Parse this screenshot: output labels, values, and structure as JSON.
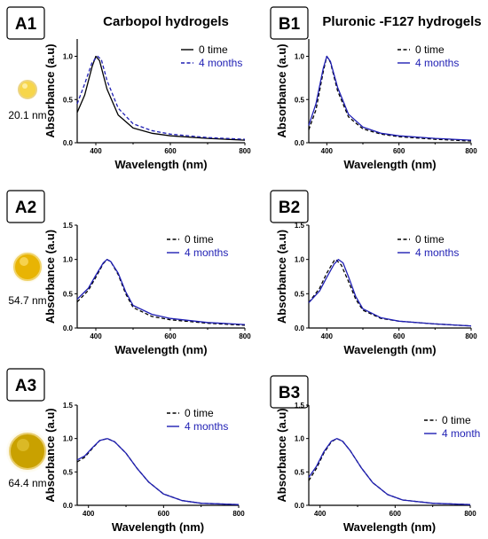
{
  "column_titles": [
    "Carbopol hydrogels",
    "Pluronic -F127 hydrogels"
  ],
  "nanoparticles": [
    {
      "label": "20.1 nm",
      "fill": "#f7d64a"
    },
    {
      "label": "54.7 nm",
      "fill": "#e8b404"
    },
    {
      "label": "64.4 nm",
      "fill": "#c9a100"
    }
  ],
  "colors": {
    "series_0": "#000000",
    "series_1": "#1f1fb4",
    "legend_text_1": "#1f1fb4"
  },
  "chart_data": [
    {
      "id": "A1",
      "type": "line",
      "panel_label": "A1",
      "xlabel": "Wavelength (nm)",
      "ylabel": "Absorbance (a.u)",
      "xlim": [
        350,
        800
      ],
      "ylim": [
        0,
        1.2
      ],
      "xticks": [
        400,
        600,
        800
      ],
      "yticks": [
        0.0,
        0.5,
        1.0
      ],
      "legend_position": "top-right",
      "series": [
        {
          "name": "0 time",
          "style": "solid",
          "x": [
            350,
            370,
            390,
            400,
            410,
            430,
            460,
            500,
            550,
            600,
            700,
            800
          ],
          "y": [
            0.35,
            0.55,
            0.88,
            1.0,
            0.95,
            0.62,
            0.32,
            0.17,
            0.11,
            0.08,
            0.05,
            0.03
          ]
        },
        {
          "name": "4 months",
          "style": "dashed",
          "x": [
            350,
            370,
            390,
            405,
            415,
            430,
            460,
            500,
            550,
            600,
            700,
            800
          ],
          "y": [
            0.45,
            0.68,
            0.93,
            1.0,
            0.96,
            0.72,
            0.4,
            0.22,
            0.14,
            0.1,
            0.06,
            0.04
          ]
        }
      ]
    },
    {
      "id": "B1",
      "type": "line",
      "panel_label": "B1",
      "xlabel": "Wavelength (nm)",
      "ylabel": "Absorbance (a.u)",
      "xlim": [
        350,
        800
      ],
      "ylim": [
        0,
        1.2
      ],
      "xticks": [
        400,
        600,
        800
      ],
      "yticks": [
        0.0,
        0.5,
        1.0
      ],
      "legend_position": "top-right",
      "series": [
        {
          "name": "0 time",
          "style": "dashed",
          "x": [
            350,
            370,
            390,
            400,
            410,
            430,
            460,
            500,
            550,
            600,
            700,
            800
          ],
          "y": [
            0.15,
            0.38,
            0.82,
            1.0,
            0.93,
            0.6,
            0.3,
            0.16,
            0.1,
            0.07,
            0.04,
            0.02
          ]
        },
        {
          "name": "4 months",
          "style": "solid",
          "x": [
            350,
            370,
            390,
            400,
            410,
            430,
            460,
            500,
            550,
            600,
            700,
            800
          ],
          "y": [
            0.2,
            0.45,
            0.86,
            1.0,
            0.94,
            0.64,
            0.33,
            0.18,
            0.11,
            0.08,
            0.05,
            0.03
          ]
        }
      ]
    },
    {
      "id": "A2",
      "type": "line",
      "panel_label": "A2",
      "xlabel": "Wavelength (nm)",
      "ylabel": "Absorbance (a.u)",
      "xlim": [
        350,
        800
      ],
      "ylim": [
        0,
        1.5
      ],
      "xticks": [
        400,
        600,
        800
      ],
      "yticks": [
        0.0,
        0.5,
        1.0,
        1.5
      ],
      "legend_position": "top-right",
      "series": [
        {
          "name": "0 time",
          "style": "dashed",
          "x": [
            350,
            380,
            400,
            420,
            430,
            440,
            460,
            480,
            500,
            550,
            600,
            700,
            800
          ],
          "y": [
            0.38,
            0.55,
            0.74,
            0.94,
            1.0,
            0.97,
            0.78,
            0.5,
            0.3,
            0.17,
            0.12,
            0.07,
            0.04
          ]
        },
        {
          "name": "4 months",
          "style": "solid",
          "x": [
            350,
            380,
            400,
            420,
            430,
            440,
            460,
            480,
            500,
            550,
            600,
            700,
            800
          ],
          "y": [
            0.42,
            0.58,
            0.77,
            0.95,
            1.0,
            0.97,
            0.8,
            0.53,
            0.33,
            0.2,
            0.14,
            0.08,
            0.05
          ]
        }
      ]
    },
    {
      "id": "B2",
      "type": "line",
      "panel_label": "B2",
      "xlabel": "Wavelength (nm)",
      "ylabel": "Absorbance (a.u)",
      "xlim": [
        350,
        800
      ],
      "ylim": [
        0,
        1.5
      ],
      "xticks": [
        400,
        600,
        800
      ],
      "yticks": [
        0.0,
        0.5,
        1.0,
        1.5
      ],
      "legend_position": "top-right",
      "series": [
        {
          "name": "0 time",
          "style": "dashed",
          "x": [
            350,
            380,
            400,
            420,
            425,
            440,
            460,
            480,
            500,
            550,
            600,
            700,
            800
          ],
          "y": [
            0.37,
            0.58,
            0.8,
            0.98,
            1.0,
            0.92,
            0.68,
            0.42,
            0.26,
            0.14,
            0.1,
            0.06,
            0.03
          ]
        },
        {
          "name": "4 months",
          "style": "solid",
          "x": [
            350,
            380,
            400,
            420,
            432,
            445,
            460,
            480,
            500,
            550,
            600,
            700,
            800
          ],
          "y": [
            0.37,
            0.54,
            0.74,
            0.93,
            1.0,
            0.95,
            0.75,
            0.46,
            0.28,
            0.15,
            0.1,
            0.06,
            0.03
          ]
        }
      ]
    },
    {
      "id": "A3",
      "type": "line",
      "panel_label": "A3",
      "xlabel": "Wavelength (nm)",
      "ylabel": "Absorbance (a.u)",
      "xlim": [
        370,
        800
      ],
      "ylim": [
        0,
        1.5
      ],
      "xticks": [
        400,
        600,
        800
      ],
      "yticks": [
        0.0,
        0.5,
        1.0,
        1.5
      ],
      "legend_position": "top-right",
      "series": [
        {
          "name": "0 time",
          "style": "dashed",
          "x": [
            370,
            390,
            410,
            430,
            450,
            470,
            500,
            530,
            560,
            600,
            650,
            700,
            800
          ],
          "y": [
            0.65,
            0.72,
            0.85,
            0.97,
            1.0,
            0.95,
            0.78,
            0.55,
            0.35,
            0.17,
            0.07,
            0.03,
            0.01
          ]
        },
        {
          "name": "4 months",
          "style": "solid",
          "x": [
            370,
            390,
            410,
            430,
            450,
            470,
            500,
            530,
            560,
            600,
            650,
            700,
            800
          ],
          "y": [
            0.68,
            0.74,
            0.86,
            0.97,
            1.0,
            0.95,
            0.78,
            0.55,
            0.35,
            0.17,
            0.07,
            0.03,
            0.01
          ]
        }
      ]
    },
    {
      "id": "B3",
      "type": "line",
      "panel_label": "B3",
      "xlabel": "Wavelength (nm)",
      "ylabel": "Absorbance (a.u)",
      "xlim": [
        370,
        800
      ],
      "ylim": [
        0,
        1.5
      ],
      "xticks": [
        400,
        600,
        800
      ],
      "yticks": [
        0.0,
        0.5,
        1.0,
        1.5
      ],
      "legend_position": "top-right",
      "series": [
        {
          "name": "0 time",
          "style": "dashed",
          "x": [
            370,
            390,
            410,
            430,
            445,
            460,
            480,
            510,
            540,
            580,
            620,
            700,
            800
          ],
          "y": [
            0.37,
            0.55,
            0.78,
            0.95,
            1.0,
            0.96,
            0.82,
            0.56,
            0.34,
            0.16,
            0.08,
            0.03,
            0.01
          ]
        },
        {
          "name": "4 month",
          "style": "solid",
          "x": [
            370,
            390,
            410,
            430,
            445,
            460,
            480,
            510,
            540,
            580,
            620,
            700,
            800
          ],
          "y": [
            0.42,
            0.58,
            0.8,
            0.96,
            1.0,
            0.96,
            0.82,
            0.56,
            0.34,
            0.16,
            0.08,
            0.03,
            0.01
          ]
        }
      ]
    }
  ]
}
